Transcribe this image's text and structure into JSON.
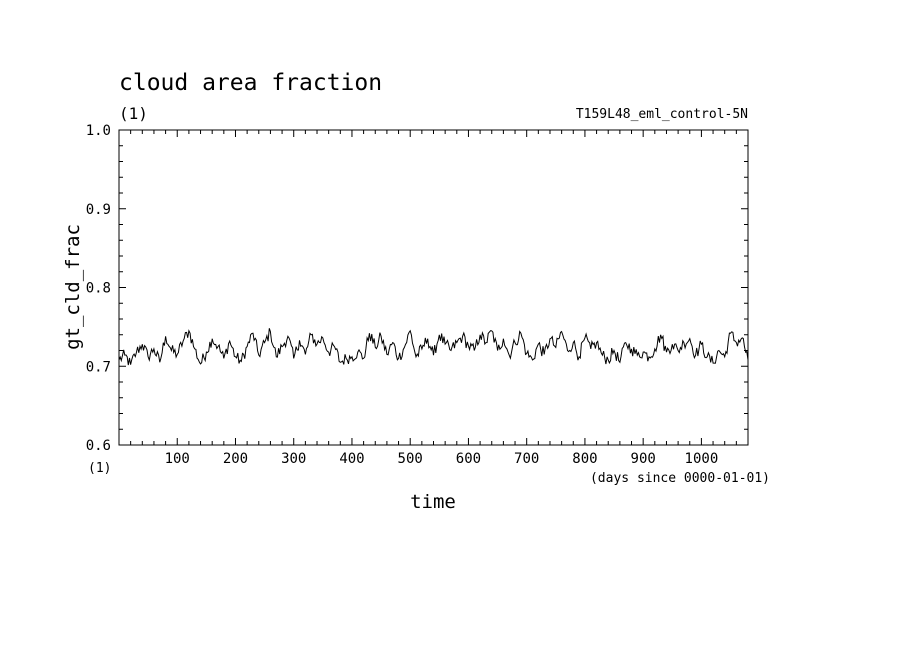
{
  "chart_data": {
    "type": "line",
    "title": "cloud area fraction",
    "units": "(1)",
    "experiment": "T159L48_eml_control-5N",
    "xlabel": "time",
    "xunits": "(days since 0000-01-01)",
    "ylabel": "gt_cld_frac",
    "xlim": [
      0,
      1080
    ],
    "ylim": [
      0.6,
      1.0
    ],
    "xticks": [
      100,
      200,
      300,
      400,
      500,
      600,
      700,
      800,
      900,
      1000
    ],
    "xtick_labels": [
      "100",
      "200",
      "300",
      "400",
      "500",
      "600",
      "700",
      "800",
      "900",
      "1000"
    ],
    "yticks": [
      0.6,
      0.7,
      0.8,
      0.9,
      1.0
    ],
    "ytick_labels": [
      "0.6",
      "0.7",
      "0.8",
      "0.9",
      "1.0"
    ],
    "grid": false,
    "series": [
      {
        "x": [
          0,
          10,
          20,
          30,
          40,
          50,
          60,
          70,
          80,
          90,
          100,
          110,
          120,
          130,
          140,
          150,
          160,
          170,
          180,
          190,
          200,
          210,
          220,
          230,
          240,
          250,
          260,
          270,
          280,
          290,
          300,
          310,
          320,
          330,
          340,
          350,
          360,
          370,
          380,
          390,
          400,
          410,
          420,
          430,
          440,
          450,
          460,
          470,
          480,
          490,
          500,
          510,
          520,
          530,
          540,
          550,
          560,
          570,
          580,
          590,
          600,
          610,
          620,
          630,
          640,
          650,
          660,
          670,
          680,
          690,
          700,
          710,
          720,
          730,
          740,
          750,
          760,
          770,
          780,
          790,
          800,
          810,
          820,
          830,
          840,
          850,
          860,
          870,
          880,
          890,
          900,
          910,
          920,
          930,
          940,
          950,
          960,
          970,
          980,
          990,
          1000,
          1010,
          1020,
          1030,
          1040,
          1050,
          1060,
          1070,
          1080
        ],
        "values": [
          0.708,
          0.714,
          0.702,
          0.718,
          0.728,
          0.712,
          0.722,
          0.705,
          0.738,
          0.72,
          0.715,
          0.732,
          0.745,
          0.722,
          0.703,
          0.718,
          0.735,
          0.725,
          0.71,
          0.732,
          0.712,
          0.706,
          0.725,
          0.742,
          0.714,
          0.73,
          0.744,
          0.712,
          0.725,
          0.738,
          0.71,
          0.733,
          0.715,
          0.74,
          0.728,
          0.736,
          0.718,
          0.725,
          0.705,
          0.71,
          0.712,
          0.718,
          0.71,
          0.742,
          0.724,
          0.738,
          0.715,
          0.73,
          0.71,
          0.724,
          0.745,
          0.712,
          0.722,
          0.735,
          0.714,
          0.74,
          0.728,
          0.72,
          0.73,
          0.738,
          0.726,
          0.72,
          0.74,
          0.73,
          0.745,
          0.72,
          0.735,
          0.714,
          0.73,
          0.742,
          0.716,
          0.708,
          0.728,
          0.715,
          0.735,
          0.724,
          0.744,
          0.72,
          0.73,
          0.712,
          0.736,
          0.722,
          0.73,
          0.714,
          0.708,
          0.72,
          0.705,
          0.73,
          0.722,
          0.714,
          0.718,
          0.712,
          0.722,
          0.74,
          0.718,
          0.728,
          0.72,
          0.73,
          0.735,
          0.714,
          0.728,
          0.712,
          0.704,
          0.72,
          0.712,
          0.742,
          0.73,
          0.736,
          0.708
        ]
      }
    ]
  }
}
